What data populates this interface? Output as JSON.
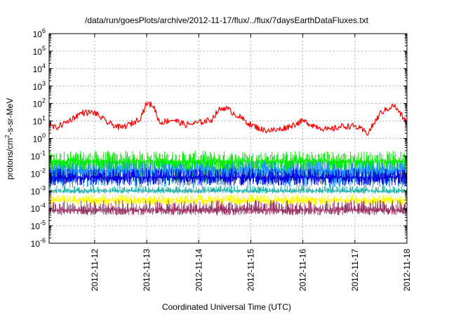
{
  "chart_data": {
    "type": "line",
    "title": "/data/run/goesPlots/archive/2012-11-17/flux/../flux/7daysEarthDataFluxes.txt",
    "xlabel": "Coordinated Universal Time (UTC)",
    "ylabel": {
      "prefix": "protons/cm",
      "superscript": "2",
      "suffix": "-s-sr-MeV"
    },
    "y_scale": "log",
    "ylim_exponent": [
      -6,
      6
    ],
    "y_ticks": [
      {
        "base": "10",
        "exp": "6"
      },
      {
        "base": "10",
        "exp": "5"
      },
      {
        "base": "10",
        "exp": "4"
      },
      {
        "base": "10",
        "exp": "3"
      },
      {
        "base": "10",
        "exp": "2"
      },
      {
        "base": "10",
        "exp": "1"
      },
      {
        "base": "10",
        "exp": "0"
      },
      {
        "base": "10",
        "exp": "-1"
      },
      {
        "base": "10",
        "exp": "-2"
      },
      {
        "base": "10",
        "exp": "-3"
      },
      {
        "base": "10",
        "exp": "-4"
      },
      {
        "base": "10",
        "exp": "-5"
      },
      {
        "base": "10",
        "exp": "-6"
      }
    ],
    "xlim": [
      "2012-11-11T03:00",
      "2012-11-18T00:00"
    ],
    "x_ticks": [
      "2012-11-12",
      "2012-11-13",
      "2012-11-14",
      "2012-11-15",
      "2012-11-16",
      "2012-11-17",
      "2012-11-18"
    ],
    "grid": true,
    "legend": "none",
    "series": [
      {
        "color": "#ff0000",
        "style": "line",
        "x": [
          "2012-11-11T03:00",
          "2012-11-11T06:00",
          "2012-11-11T12:00",
          "2012-11-11T18:00",
          "2012-11-12T00:00",
          "2012-11-12T06:00",
          "2012-11-12T12:00",
          "2012-11-12T18:00",
          "2012-11-12T21:00",
          "2012-11-13T00:00",
          "2012-11-13T03:00",
          "2012-11-13T06:00",
          "2012-11-13T12:00",
          "2012-11-13T18:00",
          "2012-11-14T00:00",
          "2012-11-14T06:00",
          "2012-11-14T09:00",
          "2012-11-14T12:00",
          "2012-11-14T18:00",
          "2012-11-15T00:00",
          "2012-11-15T06:00",
          "2012-11-15T12:00",
          "2012-11-15T18:00",
          "2012-11-16T00:00",
          "2012-11-16T06:00",
          "2012-11-16T12:00",
          "2012-11-16T18:00",
          "2012-11-17T00:00",
          "2012-11-17T06:00",
          "2012-11-17T12:00",
          "2012-11-17T18:00",
          "2012-11-18T00:00"
        ],
        "y": [
          6,
          4,
          10,
          30,
          30,
          8,
          4,
          8,
          15,
          100,
          80,
          8,
          12,
          6,
          8,
          12,
          40,
          60,
          20,
          6,
          3,
          3,
          5,
          10,
          5,
          3,
          5,
          5,
          2,
          30,
          80,
          8
        ]
      },
      {
        "color": "#00ee00",
        "style": "band",
        "ymin": 0.003,
        "ymax": 0.2,
        "typical": 0.05
      },
      {
        "color": "#1e90ff",
        "style": "band",
        "ymin": 0.0015,
        "ymax": 0.05,
        "typical": 0.015
      },
      {
        "color": "#0000dd",
        "style": "band",
        "ymin": 0.002,
        "ymax": 0.02,
        "typical": 0.006
      },
      {
        "color": "#20b2aa",
        "style": "band",
        "ymin": 0.0007,
        "ymax": 0.002,
        "typical": 0.001
      },
      {
        "color": "#ffff00",
        "style": "band",
        "ymin": 0.00015,
        "ymax": 0.0006,
        "typical": 0.0003
      },
      {
        "color": "#993366",
        "style": "band",
        "ymin": 4e-05,
        "ymax": 0.0003,
        "typical": 8e-05
      }
    ]
  }
}
